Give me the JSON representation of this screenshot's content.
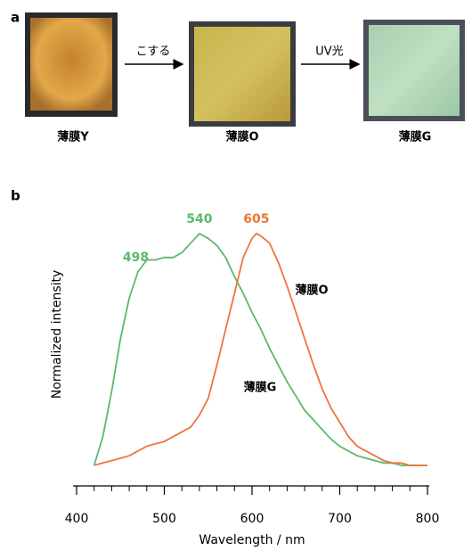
{
  "panel_a": {
    "label": "a",
    "films": [
      "薄膜Y",
      "薄膜O",
      "薄膜G"
    ],
    "arrows": [
      "こする",
      "UV光"
    ]
  },
  "chart_data": {
    "type": "line",
    "panel_label": "b",
    "xlabel": "Wavelength / nm",
    "ylabel": "Normalized intensity",
    "xlim": [
      400,
      800
    ],
    "ylim": [
      0,
      1
    ],
    "xticks": [
      400,
      500,
      600,
      700,
      800
    ],
    "xminorticks": [
      420,
      440,
      460,
      480,
      520,
      540,
      560,
      580,
      620,
      640,
      660,
      680,
      720,
      740,
      760,
      780
    ],
    "series": [
      {
        "name": "薄膜G",
        "color": "#5cb96a",
        "peaks": [
          498,
          540
        ],
        "x": [
          420,
          430,
          440,
          450,
          460,
          470,
          480,
          490,
          500,
          510,
          520,
          530,
          540,
          550,
          560,
          570,
          580,
          590,
          600,
          610,
          620,
          630,
          640,
          650,
          660,
          670,
          680,
          690,
          700,
          710,
          720,
          730,
          740,
          750,
          760,
          770,
          780,
          790,
          800
        ],
        "values": [
          0.03,
          0.15,
          0.34,
          0.56,
          0.73,
          0.84,
          0.89,
          0.89,
          0.9,
          0.9,
          0.92,
          0.96,
          1.0,
          0.98,
          0.95,
          0.9,
          0.82,
          0.75,
          0.67,
          0.6,
          0.52,
          0.45,
          0.38,
          0.32,
          0.26,
          0.22,
          0.18,
          0.14,
          0.11,
          0.09,
          0.07,
          0.06,
          0.05,
          0.04,
          0.04,
          0.03,
          0.03,
          0.03,
          0.03
        ]
      },
      {
        "name": "薄膜O",
        "color": "#ee7538",
        "peaks": [
          605
        ],
        "x": [
          420,
          430,
          440,
          450,
          460,
          470,
          480,
          490,
          500,
          510,
          520,
          530,
          540,
          550,
          560,
          570,
          580,
          590,
          600,
          605,
          610,
          620,
          630,
          640,
          650,
          660,
          670,
          680,
          690,
          700,
          710,
          720,
          730,
          740,
          750,
          760,
          770,
          780,
          790,
          800
        ],
        "values": [
          0.03,
          0.04,
          0.05,
          0.06,
          0.07,
          0.09,
          0.11,
          0.12,
          0.13,
          0.15,
          0.17,
          0.19,
          0.24,
          0.31,
          0.45,
          0.6,
          0.75,
          0.9,
          0.98,
          1.0,
          0.99,
          0.96,
          0.88,
          0.78,
          0.67,
          0.56,
          0.45,
          0.35,
          0.27,
          0.21,
          0.15,
          0.11,
          0.09,
          0.07,
          0.05,
          0.04,
          0.04,
          0.03,
          0.03,
          0.03
        ]
      }
    ]
  }
}
